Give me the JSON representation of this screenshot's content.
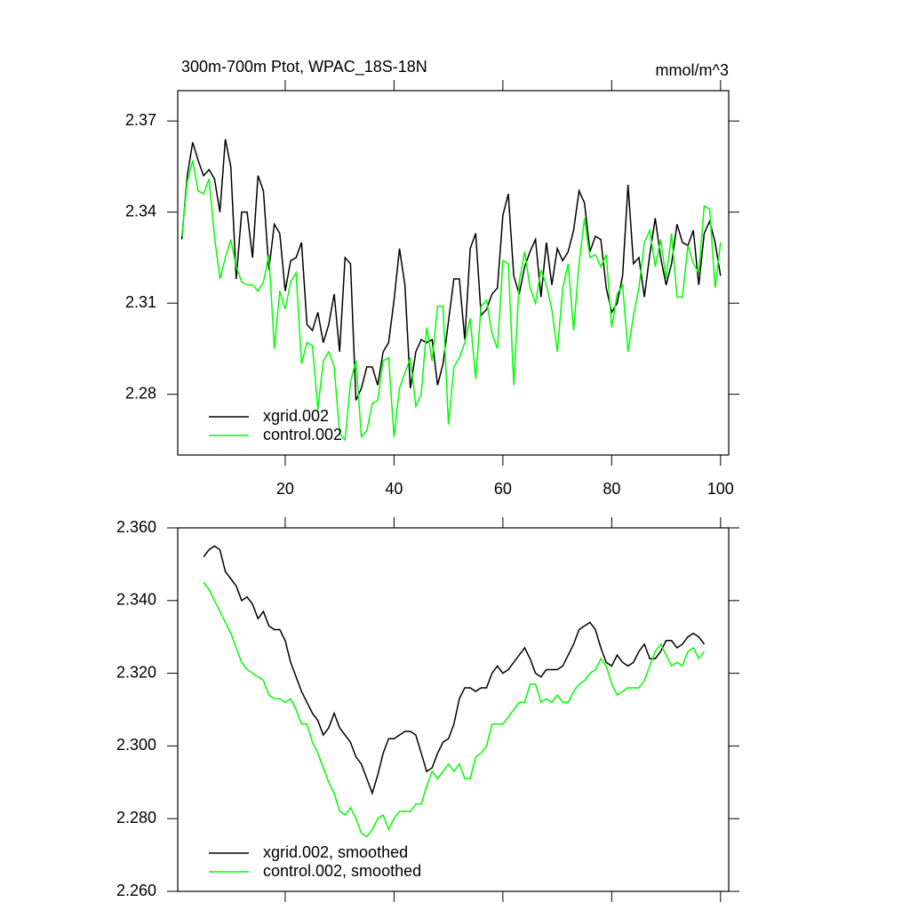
{
  "chart_data": [
    {
      "type": "line",
      "title": "300m-700m Ptot, WPAC_18S-18N",
      "units": "mmol/m^3",
      "x": [
        1,
        2,
        3,
        4,
        5,
        6,
        7,
        8,
        9,
        10,
        11,
        12,
        13,
        14,
        15,
        16,
        17,
        18,
        19,
        20,
        21,
        22,
        23,
        24,
        25,
        26,
        27,
        28,
        29,
        30,
        31,
        32,
        33,
        34,
        35,
        36,
        37,
        38,
        39,
        40,
        41,
        42,
        43,
        44,
        45,
        46,
        47,
        48,
        49,
        50,
        51,
        52,
        53,
        54,
        55,
        56,
        57,
        58,
        59,
        60,
        61,
        62,
        63,
        64,
        65,
        66,
        67,
        68,
        69,
        70,
        71,
        72,
        73,
        74,
        75,
        76,
        77,
        78,
        79,
        80,
        81,
        82,
        83,
        84,
        85,
        86,
        87,
        88,
        89,
        90,
        91,
        92,
        93,
        94,
        95,
        96,
        97,
        98,
        99,
        100
      ],
      "series": [
        {
          "name": "xgrid.002",
          "color": "#000000",
          "values": [
            2.331,
            2.352,
            2.363,
            2.357,
            2.352,
            2.354,
            2.351,
            2.34,
            2.364,
            2.355,
            2.318,
            2.34,
            2.34,
            2.325,
            2.352,
            2.347,
            2.321,
            2.336,
            2.333,
            2.314,
            2.324,
            2.325,
            2.33,
            2.303,
            2.301,
            2.307,
            2.297,
            2.303,
            2.313,
            2.294,
            2.325,
            2.323,
            2.278,
            2.282,
            2.289,
            2.289,
            2.283,
            2.294,
            2.297,
            2.311,
            2.328,
            2.316,
            2.282,
            2.294,
            2.298,
            2.297,
            2.298,
            2.283,
            2.29,
            2.304,
            2.318,
            2.318,
            2.298,
            2.328,
            2.333,
            2.306,
            2.308,
            2.313,
            2.315,
            2.339,
            2.346,
            2.319,
            2.313,
            2.322,
            2.327,
            2.331,
            2.312,
            2.33,
            2.316,
            2.328,
            2.324,
            2.327,
            2.334,
            2.347,
            2.343,
            2.327,
            2.332,
            2.331,
            2.315,
            2.307,
            2.31,
            2.319,
            2.349,
            2.323,
            2.325,
            2.312,
            2.326,
            2.338,
            2.325,
            2.316,
            2.323,
            2.336,
            2.33,
            2.329,
            2.334,
            2.316,
            2.333,
            2.337,
            2.33,
            2.319
          ]
        },
        {
          "name": "control.002",
          "color": "#00ff00",
          "values": [
            2.332,
            2.35,
            2.357,
            2.347,
            2.346,
            2.351,
            2.332,
            2.318,
            2.325,
            2.331,
            2.322,
            2.317,
            2.316,
            2.316,
            2.314,
            2.317,
            2.326,
            2.295,
            2.314,
            2.308,
            2.317,
            2.32,
            2.29,
            2.297,
            2.296,
            2.275,
            2.291,
            2.294,
            2.289,
            2.267,
            2.265,
            2.284,
            2.291,
            2.266,
            2.268,
            2.277,
            2.278,
            2.291,
            2.292,
            2.266,
            2.282,
            2.287,
            2.292,
            2.276,
            2.28,
            2.302,
            2.291,
            2.309,
            2.309,
            2.27,
            2.289,
            2.292,
            2.297,
            2.305,
            2.285,
            2.309,
            2.311,
            2.3,
            2.295,
            2.324,
            2.323,
            2.283,
            2.317,
            2.327,
            2.315,
            2.31,
            2.321,
            2.316,
            2.308,
            2.294,
            2.315,
            2.323,
            2.301,
            2.323,
            2.338,
            2.325,
            2.326,
            2.322,
            2.326,
            2.302,
            2.313,
            2.316,
            2.294,
            2.306,
            2.315,
            2.33,
            2.334,
            2.322,
            2.331,
            2.318,
            2.333,
            2.312,
            2.312,
            2.329,
            2.323,
            2.32,
            2.342,
            2.341,
            2.315,
            2.33
          ]
        }
      ],
      "xlim": [
        0.25,
        101.5
      ],
      "xticks": [
        20,
        40,
        60,
        80,
        100
      ],
      "show_xtick_labels": true,
      "ylim": [
        2.26,
        2.38
      ],
      "yticks": [
        2.28,
        2.31,
        2.34,
        2.37
      ],
      "legend": "lower left"
    },
    {
      "type": "line",
      "x": [
        5,
        6,
        7,
        8,
        9,
        10,
        11,
        12,
        13,
        14,
        15,
        16,
        17,
        18,
        19,
        20,
        21,
        22,
        23,
        24,
        25,
        26,
        27,
        28,
        29,
        30,
        31,
        32,
        33,
        34,
        35,
        36,
        37,
        38,
        39,
        40,
        41,
        42,
        43,
        44,
        45,
        46,
        47,
        48,
        49,
        50,
        51,
        52,
        53,
        54,
        55,
        56,
        57,
        58,
        59,
        60,
        61,
        62,
        63,
        64,
        65,
        66,
        67,
        68,
        69,
        70,
        71,
        72,
        73,
        74,
        75,
        76,
        77,
        78,
        79,
        80,
        81,
        82,
        83,
        84,
        85,
        86,
        87,
        88,
        89,
        90,
        91,
        92,
        93,
        94,
        95,
        96,
        97
      ],
      "series": [
        {
          "name": "xgrid.002, smoothed",
          "color": "#000000",
          "values": [
            2.352,
            2.354,
            2.355,
            2.354,
            2.348,
            2.346,
            2.344,
            2.34,
            2.341,
            2.339,
            2.335,
            2.337,
            2.333,
            2.332,
            2.332,
            2.329,
            2.323,
            2.319,
            2.315,
            2.312,
            2.309,
            2.307,
            2.303,
            2.305,
            2.309,
            2.305,
            2.303,
            2.301,
            2.297,
            2.295,
            2.291,
            2.287,
            2.292,
            2.298,
            2.302,
            2.302,
            2.303,
            2.304,
            2.304,
            2.303,
            2.298,
            2.293,
            2.294,
            2.298,
            2.301,
            2.302,
            2.306,
            2.313,
            2.316,
            2.316,
            2.315,
            2.316,
            2.316,
            2.32,
            2.322,
            2.32,
            2.321,
            2.323,
            2.325,
            2.327,
            2.324,
            2.32,
            2.319,
            2.321,
            2.321,
            2.321,
            2.322,
            2.325,
            2.328,
            2.332,
            2.333,
            2.334,
            2.332,
            2.327,
            2.323,
            2.322,
            2.325,
            2.323,
            2.322,
            2.323,
            2.326,
            2.328,
            2.324,
            2.324,
            2.326,
            2.329,
            2.329,
            2.327,
            2.328,
            2.33,
            2.331,
            2.33,
            2.328
          ]
        },
        {
          "name": "control.002, smoothed",
          "color": "#00ff00",
          "values": [
            2.345,
            2.343,
            2.34,
            2.337,
            2.334,
            2.331,
            2.327,
            2.323,
            2.321,
            2.32,
            2.319,
            2.318,
            2.314,
            2.313,
            2.313,
            2.312,
            2.313,
            2.31,
            2.306,
            2.306,
            2.301,
            2.298,
            2.294,
            2.29,
            2.287,
            2.282,
            2.281,
            2.283,
            2.28,
            2.276,
            2.275,
            2.277,
            2.28,
            2.281,
            2.277,
            2.28,
            2.282,
            2.282,
            2.282,
            2.284,
            2.284,
            2.289,
            2.293,
            2.291,
            2.293,
            2.295,
            2.293,
            2.295,
            2.291,
            2.291,
            2.297,
            2.298,
            2.3,
            2.306,
            2.306,
            2.306,
            2.308,
            2.31,
            2.312,
            2.312,
            2.317,
            2.317,
            2.312,
            2.313,
            2.312,
            2.314,
            2.312,
            2.312,
            2.315,
            2.317,
            2.318,
            2.32,
            2.321,
            2.324,
            2.322,
            2.317,
            2.314,
            2.315,
            2.316,
            2.316,
            2.316,
            2.318,
            2.322,
            2.326,
            2.328,
            2.325,
            2.322,
            2.323,
            2.322,
            2.326,
            2.327,
            2.324,
            2.326
          ]
        }
      ],
      "xlim": [
        0.25,
        101.5
      ],
      "xticks": [
        20,
        40,
        60,
        80,
        100
      ],
      "show_xtick_labels": false,
      "ylim": [
        2.26,
        2.36
      ],
      "yticks": [
        {
          "value": 2.26,
          "label": "2.260"
        },
        {
          "value": 2.28,
          "label": "2.280"
        },
        {
          "value": 2.3,
          "label": "2.300"
        },
        {
          "value": 2.32,
          "label": "2.320"
        },
        {
          "value": 2.34,
          "label": "2.340"
        },
        {
          "value": 2.36,
          "label": "2.360"
        }
      ],
      "legend": "lower left"
    }
  ]
}
